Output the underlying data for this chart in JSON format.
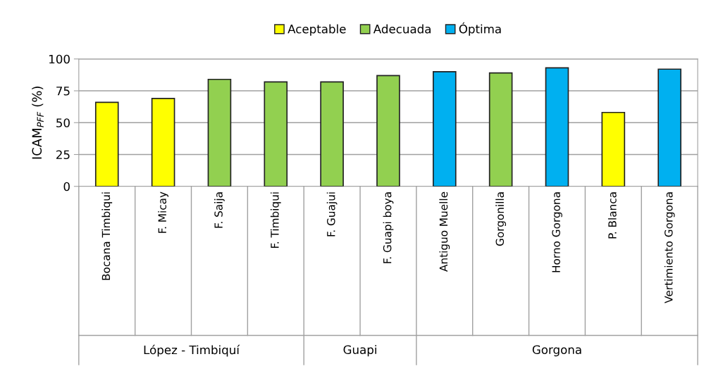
{
  "chart_data": {
    "type": "bar",
    "ylabel": "ICAM$_{PFF}$ (%)",
    "categories": [
      "Bocana Timbiqui",
      "F. Micay",
      "F. Saija",
      "F. Timbiqui",
      "F. Guajui",
      "F. Guapi boya",
      "Antiguo Muelle",
      "Gorgonilla",
      "Horno Gorgona",
      "P. Blanca",
      "Vertimiento Gorgona"
    ],
    "series": [
      {
        "name": "Aceptable",
        "color": "#ffff00",
        "values": [
          66,
          69,
          null,
          null,
          null,
          null,
          null,
          null,
          null,
          58,
          null
        ]
      },
      {
        "name": "Adecuada",
        "color": "#92d050",
        "values": [
          null,
          null,
          84,
          82,
          82,
          87,
          null,
          89,
          null,
          null,
          null
        ]
      },
      {
        "name": "Óptima",
        "color": "#00b0f0",
        "values": [
          null,
          null,
          null,
          null,
          null,
          null,
          90,
          null,
          93,
          null,
          92
        ]
      }
    ],
    "ylim": [
      0,
      100
    ],
    "yticks": [
      0,
      25,
      50,
      75,
      100
    ],
    "grid": "y",
    "legend": "top",
    "annotations": [
      "López - Timbiquí",
      "Guapi",
      "Gorgona"
    ]
  }
}
